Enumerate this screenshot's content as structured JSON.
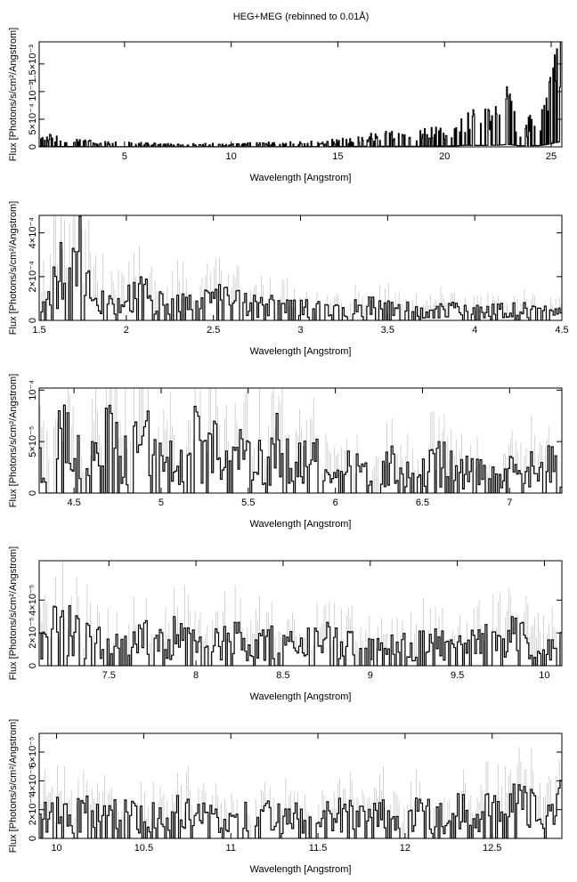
{
  "chart_data": {
    "type": "line",
    "title": "HEG+MEG (rebinned to 0.01Å)",
    "panels": [
      {
        "xlabel": "Wavelength [Angstrom]",
        "ylabel": "Flux [Photons/s/cm²/Angstrom]",
        "xlim": [
          1.0,
          25.5
        ],
        "ylim": [
          0,
          0.0019
        ],
        "xticks": [
          {
            "value": 5,
            "label": "5"
          },
          {
            "value": 10,
            "label": "10"
          },
          {
            "value": 15,
            "label": "15"
          },
          {
            "value": 20,
            "label": "20"
          },
          {
            "value": 25,
            "label": "25"
          }
        ],
        "yticks": [
          {
            "value": 0,
            "label": "0"
          },
          {
            "value": 0.0005,
            "label": "5×10⁻⁴"
          },
          {
            "value": 0.001,
            "label": "10⁻³"
          },
          {
            "value": 0.0015,
            "label": "1.5×10⁻³"
          }
        ],
        "series": [
          {
            "x": [
              1.0,
              1.2,
              1.4,
              1.6,
              1.8,
              2.0,
              2.5,
              3,
              3.5,
              4,
              5,
              6,
              7,
              8,
              9,
              10,
              11,
              12,
              13,
              14,
              15,
              15.5,
              16,
              16.5,
              17,
              17.5,
              18,
              18.5,
              19,
              19.5,
              20,
              20.5,
              21,
              21.5,
              22,
              22.5,
              23,
              23.5,
              24,
              24.5,
              25,
              25.2,
              25.4
            ],
            "y": [
              0.00015,
              0.00025,
              0.0002,
              0.00018,
              0.00015,
              0.00014,
              0.00012,
              0.0001,
              9e-05,
              8e-05,
              7e-05,
              6e-05,
              5e-05,
              5e-05,
              5e-05,
              5e-05,
              6e-05,
              7e-05,
              8e-05,
              0.0001,
              0.00012,
              0.00015,
              0.00018,
              0.0002,
              0.00022,
              0.00025,
              0.0002,
              0.00022,
              0.00025,
              0.00028,
              0.0003,
              0.00035,
              0.0006,
              0.0005,
              0.00055,
              0.0006,
              0.0009,
              0.0004,
              0.00045,
              0.0005,
              0.0011,
              0.0015,
              0.0018
            ]
          }
        ]
      },
      {
        "xlabel": "Wavelength [Angstrom]",
        "ylabel": "Flux [Photons/s/cm²/Angstrom]",
        "xlim": [
          1.5,
          4.5
        ],
        "ylim": [
          0,
          0.00048
        ],
        "xticks": [
          {
            "value": 1.5,
            "label": "1.5"
          },
          {
            "value": 2,
            "label": "2"
          },
          {
            "value": 2.5,
            "label": "2.5"
          },
          {
            "value": 3,
            "label": "3"
          },
          {
            "value": 3.5,
            "label": "3.5"
          },
          {
            "value": 4,
            "label": "4"
          },
          {
            "value": 4.5,
            "label": "4.5"
          }
        ],
        "yticks": [
          {
            "value": 0,
            "label": "0"
          },
          {
            "value": 0.0002,
            "label": "2×10⁻⁴"
          },
          {
            "value": 0.0004,
            "label": "4×10⁻⁴"
          }
        ],
        "series": [
          {
            "x": [
              1.5,
              1.55,
              1.6,
              1.65,
              1.7,
              1.75,
              1.8,
              1.85,
              1.9,
              1.95,
              2.0,
              2.1,
              2.2,
              2.3,
              2.4,
              2.5,
              2.6,
              2.7,
              2.8,
              2.9,
              3.0,
              3.2,
              3.4,
              3.6,
              3.8,
              4.0,
              4.2,
              4.4,
              4.5
            ],
            "y": [
              0.0001,
              0.0002,
              0.00026,
              0.0002,
              0.00022,
              0.0003,
              0.00012,
              0.00016,
              8e-05,
              0.0001,
              0.00011,
              0.00012,
              9e-05,
              0.0001,
              8e-05,
              9e-05,
              0.00011,
              7e-05,
              6e-05,
              7e-05,
              6e-05,
              5e-05,
              6e-05,
              5e-05,
              5e-05,
              4e-05,
              5e-05,
              4e-05,
              3e-05
            ]
          }
        ]
      },
      {
        "xlabel": "Wavelength [Angstrom]",
        "ylabel": "Flux [Photons/s/cm²/Angstrom]",
        "xlim": [
          4.3,
          7.3
        ],
        "ylim": [
          0,
          0.000102
        ],
        "xticks": [
          {
            "value": 4.5,
            "label": "4.5"
          },
          {
            "value": 5,
            "label": "5"
          },
          {
            "value": 5.5,
            "label": "5.5"
          },
          {
            "value": 6,
            "label": "6"
          },
          {
            "value": 6.5,
            "label": "6.5"
          },
          {
            "value": 7,
            "label": "7"
          }
        ],
        "yticks": [
          {
            "value": 0,
            "label": "0"
          },
          {
            "value": 5e-05,
            "label": "5×10⁻⁵"
          },
          {
            "value": 0.0001,
            "label": "10⁻⁴"
          }
        ],
        "series": [
          {
            "x": [
              4.3,
              4.4,
              4.5,
              4.6,
              4.7,
              4.8,
              4.9,
              5.0,
              5.1,
              5.2,
              5.3,
              5.4,
              5.5,
              5.6,
              5.7,
              5.8,
              5.9,
              6.0,
              6.1,
              6.2,
              6.3,
              6.4,
              6.5,
              6.6,
              6.7,
              6.8,
              6.9,
              7.0,
              7.1,
              7.2,
              7.3
            ],
            "y": [
              3e-05,
              6e-05,
              4e-05,
              3e-05,
              5e-05,
              3e-05,
              5e-05,
              4e-05,
              3e-05,
              5e-05,
              4e-05,
              3e-05,
              4e-05,
              3e-05,
              5e-05,
              3e-05,
              3e-05,
              2e-05,
              3e-05,
              2e-05,
              3e-05,
              2e-05,
              2e-05,
              3e-05,
              2e-05,
              2e-05,
              2e-05,
              2e-05,
              2e-05,
              3e-05,
              2e-05
            ]
          }
        ]
      },
      {
        "xlabel": "Wavelength [Angstrom]",
        "ylabel": "Flux [Photons/s/cm²/Angstrom]",
        "xlim": [
          7.1,
          10.1
        ],
        "ylim": [
          0,
          6.4e-05
        ],
        "xticks": [
          {
            "value": 7.5,
            "label": "7.5"
          },
          {
            "value": 8,
            "label": "8"
          },
          {
            "value": 8.5,
            "label": "8.5"
          },
          {
            "value": 9,
            "label": "9"
          },
          {
            "value": 9.5,
            "label": "9.5"
          },
          {
            "value": 10,
            "label": "10"
          }
        ],
        "yticks": [
          {
            "value": 0,
            "label": "0"
          },
          {
            "value": 2e-05,
            "label": "2×10⁻⁵"
          },
          {
            "value": 4e-05,
            "label": "4×10⁻⁵"
          }
        ],
        "series": [
          {
            "x": [
              7.1,
              7.2,
              7.3,
              7.4,
              7.5,
              7.6,
              7.7,
              7.8,
              7.9,
              8.0,
              8.1,
              8.2,
              8.3,
              8.4,
              8.5,
              8.6,
              8.7,
              8.8,
              8.9,
              9.0,
              9.1,
              9.2,
              9.3,
              9.4,
              9.5,
              9.6,
              9.7,
              9.8,
              9.9,
              10.0,
              10.1
            ],
            "y": [
              1.5e-05,
              3e-05,
              1.8e-05,
              1.5e-05,
              1.2e-05,
              1.4e-05,
              1.6e-05,
              1.5e-05,
              2e-05,
              1.3e-05,
              1.2e-05,
              1.6e-05,
              1.4e-05,
              1.5e-05,
              1.3e-05,
              1.2e-05,
              1.4e-05,
              1.8e-05,
              1.2e-05,
              1.1e-05,
              1.3e-05,
              1.2e-05,
              1.4e-05,
              1.2e-05,
              1.1e-05,
              1.3e-05,
              1.5e-05,
              2e-05,
              1.8e-05,
              1.4e-05,
              1.2e-05
            ]
          }
        ]
      },
      {
        "xlabel": "Wavelength [Angstrom]",
        "ylabel": "Flux [Photons/s/cm²/Angstrom]",
        "xlim": [
          9.9,
          12.9
        ],
        "ylim": [
          0,
          7.3e-05
        ],
        "xticks": [
          {
            "value": 10,
            "label": "10"
          },
          {
            "value": 10.5,
            "label": "10.5"
          },
          {
            "value": 11,
            "label": "11"
          },
          {
            "value": 11.5,
            "label": "11.5"
          },
          {
            "value": 12,
            "label": "12"
          },
          {
            "value": 12.5,
            "label": "12.5"
          }
        ],
        "yticks": [
          {
            "value": 0,
            "label": "0"
          },
          {
            "value": 2e-05,
            "label": "2×10⁻⁵"
          },
          {
            "value": 4e-05,
            "label": "4×10⁻⁵"
          },
          {
            "value": 6e-05,
            "label": "6×10⁻⁵"
          }
        ],
        "series": [
          {
            "x": [
              9.9,
              10.0,
              10.1,
              10.2,
              10.3,
              10.4,
              10.5,
              10.6,
              10.7,
              10.8,
              10.9,
              11.0,
              11.1,
              11.2,
              11.3,
              11.4,
              11.5,
              11.6,
              11.7,
              11.8,
              11.9,
              12.0,
              12.1,
              12.2,
              12.3,
              12.4,
              12.5,
              12.6,
              12.7,
              12.8,
              12.9
            ],
            "y": [
              1.5e-05,
              1.8e-05,
              1.6e-05,
              1.7e-05,
              1.5e-05,
              1.6e-05,
              1.4e-05,
              1.7e-05,
              1.8e-05,
              1.5e-05,
              1.4e-05,
              1.3e-05,
              1.5e-05,
              1.6e-05,
              1.4e-05,
              1.5e-05,
              1.3e-05,
              1.6e-05,
              1.5e-05,
              1.4e-05,
              1.6e-05,
              1.7e-05,
              1.5e-05,
              1.6e-05,
              1.8e-05,
              1.7e-05,
              1.9e-05,
              2.2e-05,
              2e-05,
              2.1e-05,
              2.3e-05
            ]
          }
        ]
      }
    ]
  }
}
